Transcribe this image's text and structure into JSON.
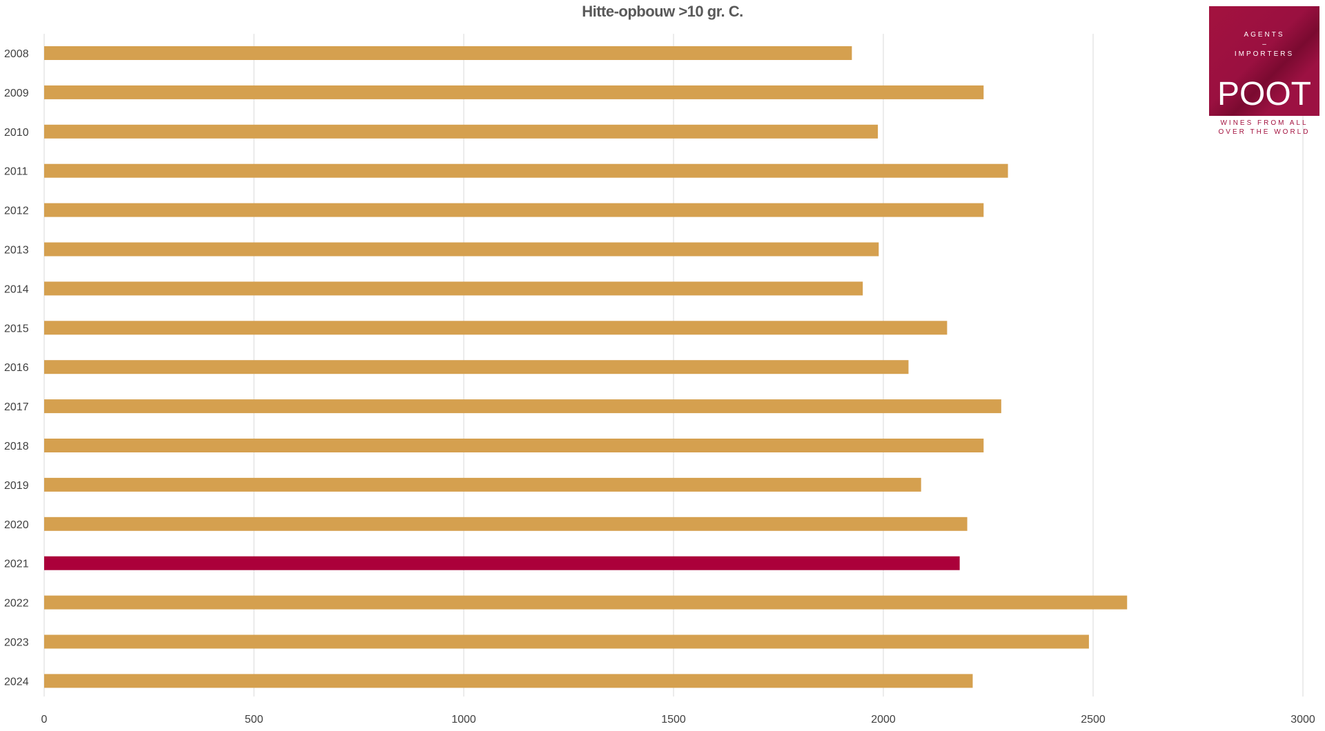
{
  "chart_data": {
    "type": "bar",
    "orientation": "horizontal",
    "title": "Hitte-opbouw >10 gr. C.",
    "xlabel": "",
    "ylabel": "",
    "xlim": [
      0,
      3000
    ],
    "xticks": [
      0,
      500,
      1000,
      1500,
      2000,
      2500,
      3000
    ],
    "grid": true,
    "categories": [
      "2008",
      "2009",
      "2010",
      "2011",
      "2012",
      "2013",
      "2014",
      "2015",
      "2016",
      "2017",
      "2018",
      "2019",
      "2020",
      "2021",
      "2022",
      "2023",
      "2024"
    ],
    "values": [
      1925,
      2239,
      1987,
      2297,
      2239,
      1989,
      1951,
      2152,
      2060,
      2281,
      2239,
      2090,
      2200,
      2182,
      2581,
      2490,
      2213
    ],
    "highlight": "2021",
    "colors": {
      "default": "#d5a04f",
      "highlight": "#ab003a",
      "grid": "#d9d9d9",
      "text": "#404040"
    }
  },
  "logo": {
    "line1": "AGENTS",
    "dash": "–",
    "line2": "IMPORTERS",
    "name": "POOT",
    "tagline1": "WINES FROM ALL",
    "tagline2": "OVER THE WORLD"
  }
}
